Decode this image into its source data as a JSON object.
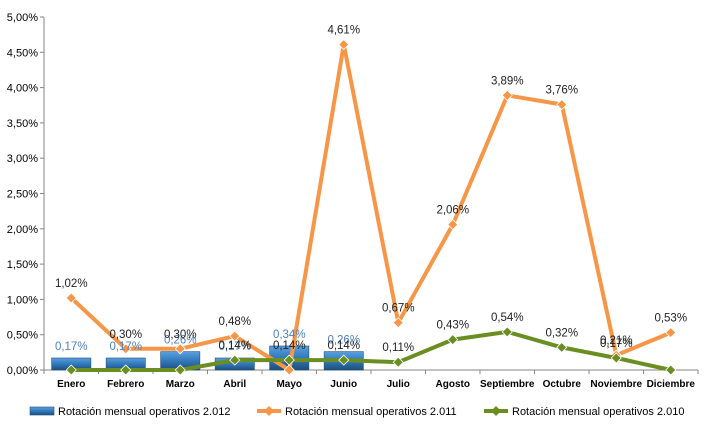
{
  "chart_data": {
    "type": "bar+line",
    "categories": [
      "Enero",
      "Febrero",
      "Marzo",
      "Abril",
      "Mayo",
      "Junio",
      "Julio",
      "Agosto",
      "Septiembre",
      "Octubre",
      "Noviembre",
      "Diciembre"
    ],
    "y_ticks": [
      "0,00%",
      "0,50%",
      "1,00%",
      "1,50%",
      "2,00%",
      "2,50%",
      "3,00%",
      "3,50%",
      "4,00%",
      "4,50%",
      "5,00%"
    ],
    "ylim": [
      0,
      5
    ],
    "grid": false,
    "legend_position": "bottom",
    "series": [
      {
        "name": "Rotación mensual operativos 2.012",
        "type": "bar",
        "color": "#2e75b6",
        "label_color": "#4f81bd",
        "values": [
          0.17,
          0.17,
          0.26,
          0.17,
          0.34,
          0.26,
          null,
          null,
          null,
          null,
          null,
          null
        ],
        "labels": [
          "0,17%",
          "0,17%",
          "0,26%",
          "0,17%",
          "0,34%",
          "0,26%",
          "",
          "",
          "",
          "",
          "",
          ""
        ]
      },
      {
        "name": "Rotación mensual operativos 2.011",
        "type": "line",
        "color": "#f79646",
        "label_color": "#222222",
        "values": [
          1.02,
          0.3,
          0.3,
          0.48,
          0.0,
          4.61,
          0.67,
          2.06,
          3.89,
          3.76,
          0.21,
          0.53
        ],
        "labels": [
          "1,02%",
          "0,30%",
          "0,30%",
          "0,48%",
          "",
          "4,61%",
          "0,67%",
          "2,06%",
          "3,89%",
          "3,76%",
          "0,21%",
          "0,53%"
        ]
      },
      {
        "name": "Rotación mensual operativos 2.010",
        "type": "line",
        "color": "#6b8e23",
        "label_color": "#222222",
        "values": [
          0.0,
          0.0,
          0.0,
          0.14,
          0.14,
          0.14,
          0.11,
          0.43,
          0.54,
          0.32,
          0.17,
          0.0
        ],
        "labels": [
          "",
          "",
          "",
          "0,14%",
          "0,14%",
          "0,14%",
          "0,11%",
          "0,43%",
          "0,54%",
          "0,32%",
          "0,17%",
          ""
        ]
      }
    ]
  }
}
